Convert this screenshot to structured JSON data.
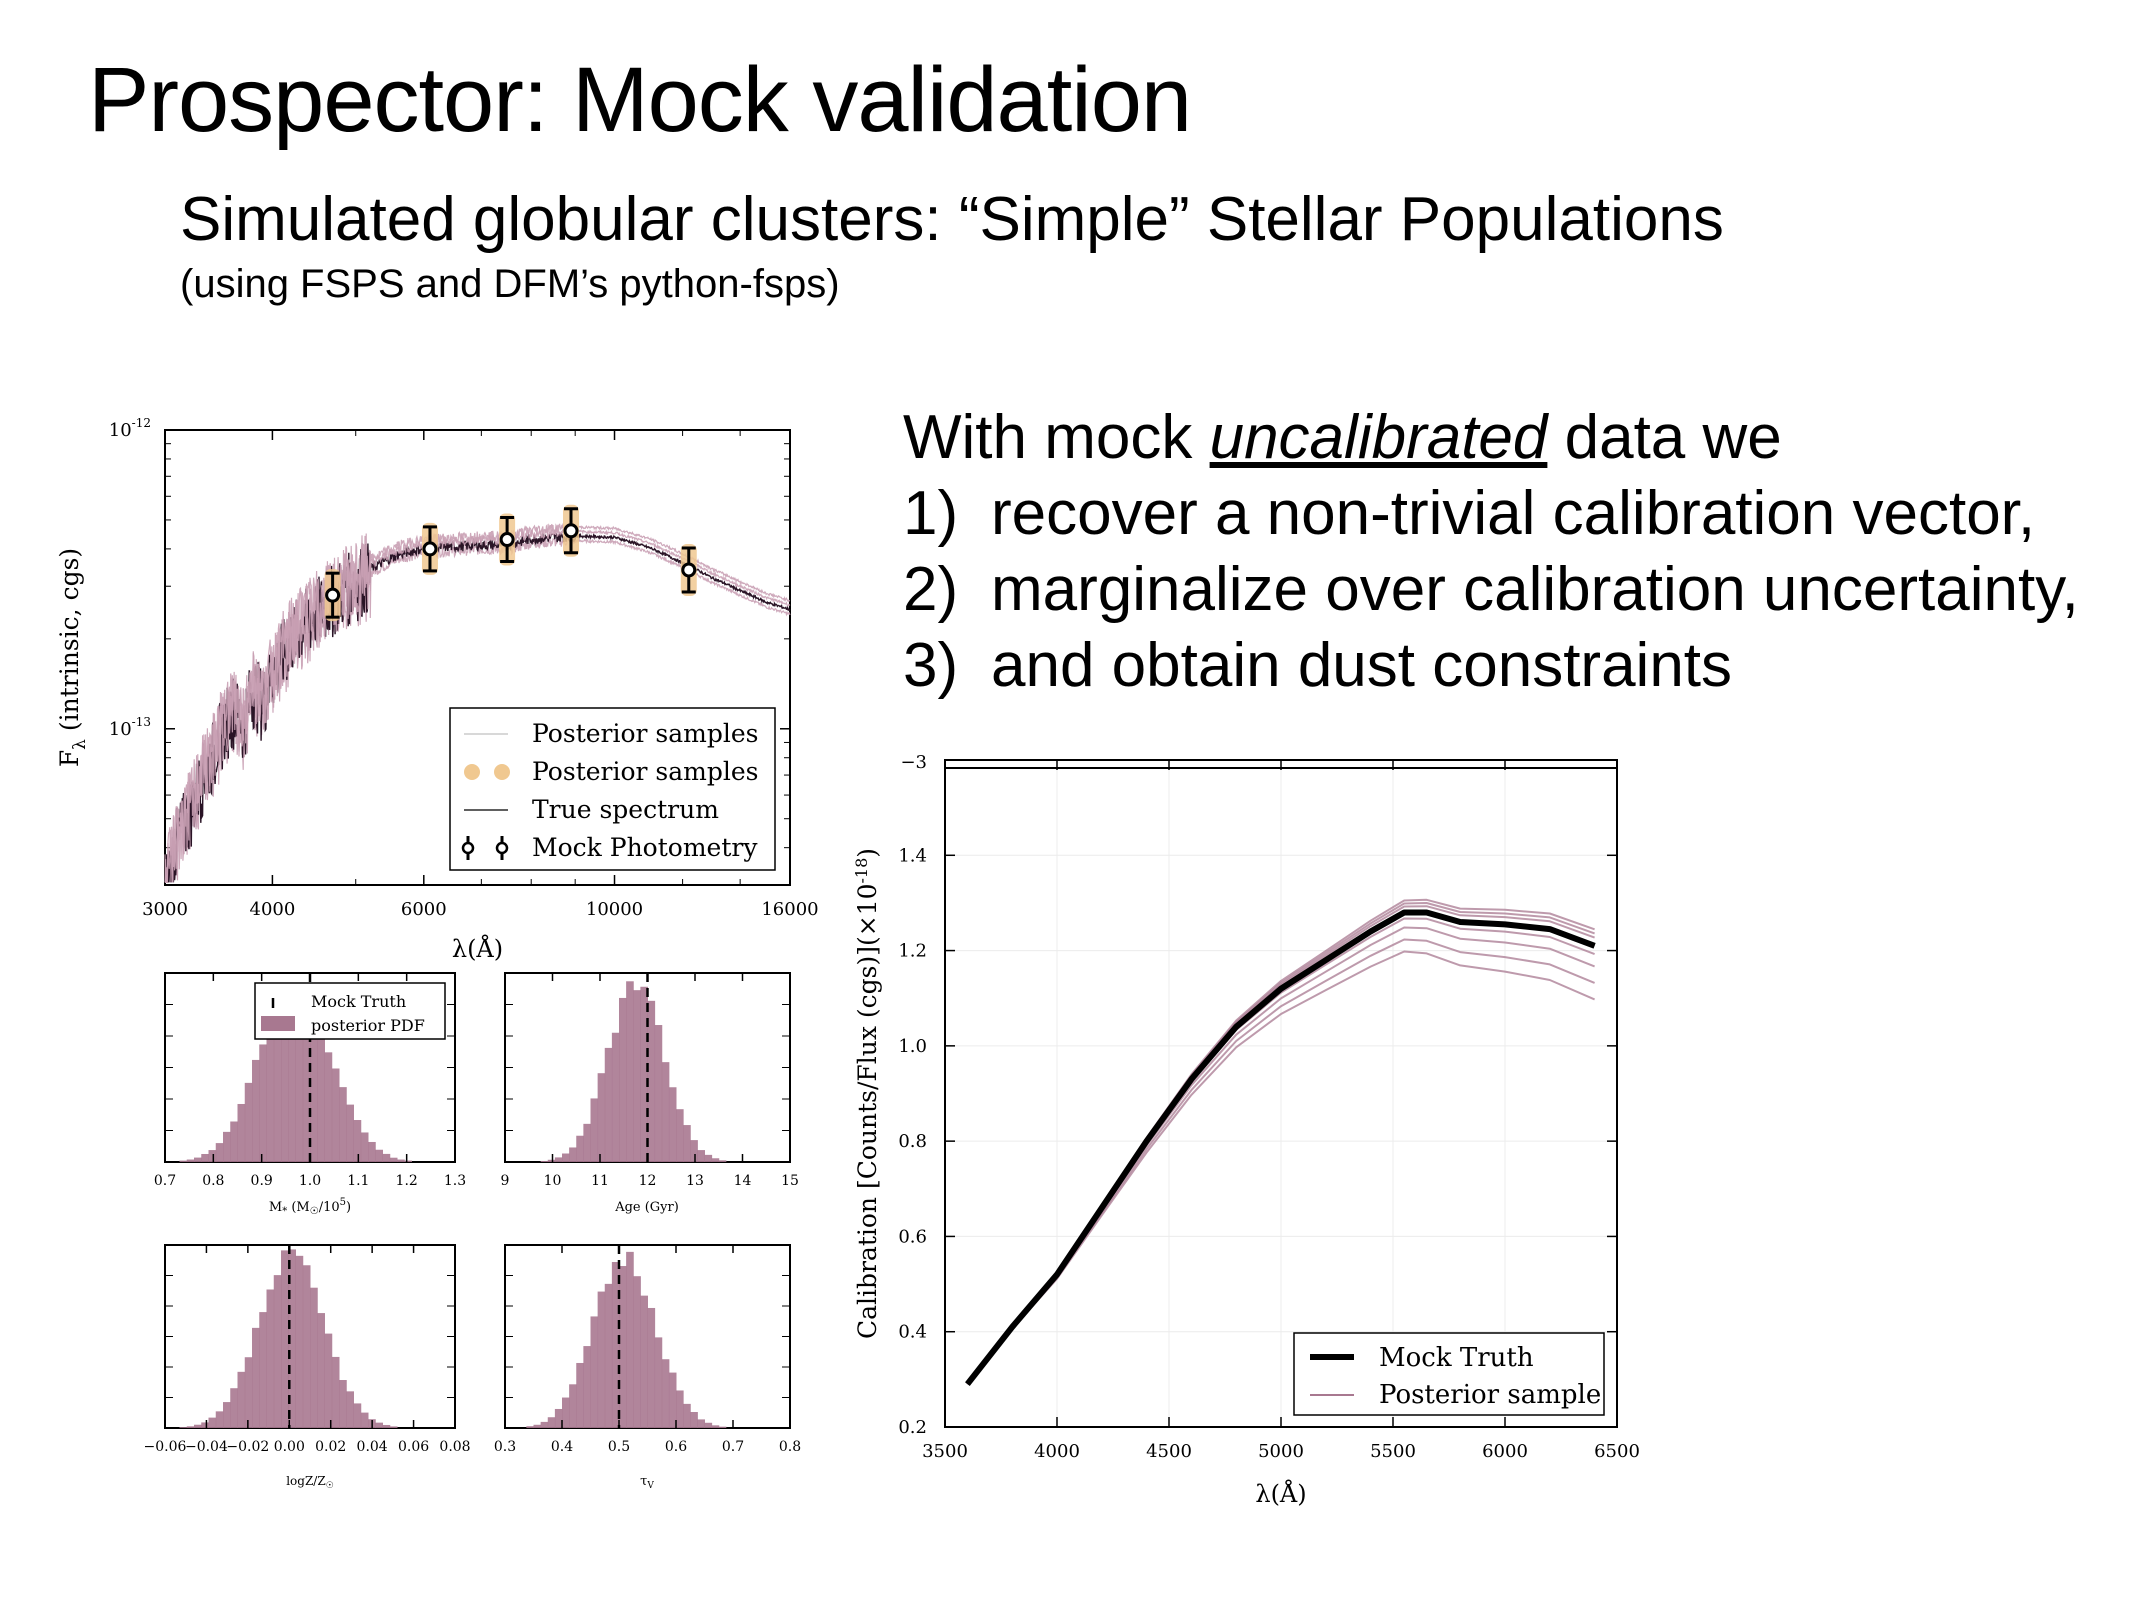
{
  "slide": {
    "title": "Prospector: Mock validation",
    "subtitle": "Simulated globular clusters: “Simple” Stellar Populations",
    "subnote": "(using FSPS and DFM’s python-fsps)"
  },
  "bullets": {
    "intro_pre": "With mock ",
    "intro_em": "uncalibrated",
    "intro_post": " data we",
    "items": [
      {
        "num": "1)",
        "text": "recover a non-trivial calibration vector,"
      },
      {
        "num": "2)",
        "text": "marginalize over calibration uncertainty,"
      },
      {
        "num": "3)",
        "text": "and obtain dust constraints"
      }
    ]
  },
  "colors": {
    "spectrum": "#2a1426",
    "posterior_line": "#c9a0b4",
    "posterior_fill": "#a87890",
    "photometry_band": "#f0c890",
    "truth": "#000000"
  },
  "chart_data": [
    {
      "id": "sed",
      "type": "line",
      "xlabel": "λ(Å)",
      "ylabel": "F",
      "ylabel_sub": "λ",
      "ylabel_rest": " (intrinsic, cgs)",
      "x_scale": "log",
      "y_scale": "log",
      "xlim": [
        3000,
        16000
      ],
      "ylim": [
        3e-14,
        1e-12
      ],
      "xticks": [
        3000,
        4000,
        6000,
        10000,
        16000
      ],
      "xtick_labels": [
        "3000",
        "4000",
        "6000",
        "10000",
        "16000"
      ],
      "ytick_labels": [
        {
          "base": "10",
          "exp": "-12",
          "value": 1e-12
        },
        {
          "base": "10",
          "exp": "-13",
          "value": 1e-13
        }
      ],
      "legend": {
        "placement": "lower-right",
        "entries": [
          "Posterior samples",
          "Posterior samples",
          "True spectrum",
          "Mock Photometry"
        ]
      },
      "series": [
        {
          "name": "True spectrum",
          "x": [
            3000,
            3100,
            3200,
            3300,
            3400,
            3500,
            3600,
            3700,
            3800,
            3900,
            4000,
            4100,
            4200,
            4300,
            4500,
            4700,
            5000,
            5300,
            5600,
            6000,
            6500,
            7000,
            7500,
            8000,
            8500,
            9000,
            10000,
            11000,
            12000,
            13000,
            14000,
            15000,
            16000
          ],
          "y": [
            3e-14,
            4.5e-14,
            5.5e-14,
            7e-14,
            8.5e-14,
            1.05e-13,
            1.25e-13,
            1.1e-13,
            1.45e-13,
            1.3e-13,
            1.6e-13,
            1.85e-13,
            2.1e-13,
            2.3e-13,
            2.6e-13,
            2.9e-13,
            3.3e-13,
            3.6e-13,
            3.9e-13,
            4.1e-13,
            4.15e-13,
            4.2e-13,
            4.2e-13,
            4.4e-13,
            4.45e-13,
            4.5e-13,
            4.45e-13,
            4.1e-13,
            3.65e-13,
            3.25e-13,
            2.95e-13,
            2.7e-13,
            2.55e-13
          ]
        }
      ],
      "photometry": [
        {
          "x": 4700,
          "y": 2.8e-13
        },
        {
          "x": 6100,
          "y": 4e-13
        },
        {
          "x": 7500,
          "y": 4.3e-13
        },
        {
          "x": 8900,
          "y": 4.6e-13
        },
        {
          "x": 12200,
          "y": 3.4e-13
        }
      ]
    },
    {
      "id": "mass",
      "type": "bar",
      "xlabel": "M* (M☉/10⁵)",
      "xlim": [
        0.7,
        1.3
      ],
      "xtick_labels": [
        "0.7",
        "0.8",
        "0.9",
        "1.0",
        "1.1",
        "1.2",
        "1.3"
      ],
      "truth": 1.0,
      "mean": 0.97,
      "sigma": 0.075,
      "legend": {
        "placement": "top-right",
        "entries": [
          "Mock Truth",
          "posterior PDF"
        ]
      }
    },
    {
      "id": "age",
      "type": "bar",
      "xlabel": "Age (Gyr)",
      "xlim": [
        9,
        15
      ],
      "xtick_labels": [
        "9",
        "10",
        "11",
        "12",
        "13",
        "14",
        "15"
      ],
      "truth": 12.0,
      "mean": 11.75,
      "sigma": 0.6
    },
    {
      "id": "logz",
      "type": "bar",
      "xlabel": "logZ/Z☉",
      "xlim": [
        -0.06,
        0.08
      ],
      "xtick_labels": [
        "−0.06",
        "−0.04",
        "−0.02",
        "0.00",
        "0.02",
        "0.04",
        "0.06",
        "0.08"
      ],
      "truth": 0.0,
      "mean": 0.001,
      "sigma": 0.016
    },
    {
      "id": "tauv",
      "type": "bar",
      "xlabel": "τV",
      "xlim": [
        0.3,
        0.8
      ],
      "xtick_labels": [
        "0.3",
        "0.4",
        "0.5",
        "0.6",
        "0.7",
        "0.8"
      ],
      "truth": 0.5,
      "mean": 0.51,
      "sigma": 0.055
    },
    {
      "id": "calibration",
      "type": "line",
      "xlabel": "λ(Å)",
      "ylabel": "Calibration [Counts/Flux (cgs)](×10",
      "ylabel_exp": "-18",
      "ylabel_end": ")",
      "xlim": [
        3500,
        6500
      ],
      "ylim": [
        0.2,
        1.6
      ],
      "top_tick_label": "−3",
      "xtick_labels": [
        "3500",
        "4000",
        "4500",
        "5000",
        "5500",
        "6000",
        "6500"
      ],
      "ytick_labels": [
        "0.2",
        "0.4",
        "0.6",
        "0.8",
        "1.0",
        "1.2",
        "1.4"
      ],
      "legend": {
        "placement": "lower-right",
        "entries": [
          "Mock Truth",
          "Posterior sample"
        ]
      },
      "series": [
        {
          "name": "Mock Truth",
          "x": [
            3600,
            3800,
            4000,
            4200,
            4400,
            4600,
            4800,
            5000,
            5200,
            5400,
            5550,
            5650,
            5800,
            6000,
            6200,
            6400
          ],
          "y": [
            0.29,
            0.41,
            0.52,
            0.66,
            0.8,
            0.93,
            1.04,
            1.12,
            1.18,
            1.24,
            1.28,
            1.28,
            1.26,
            1.255,
            1.245,
            1.21
          ]
        }
      ],
      "posterior_offsets": [
        0.04,
        0.02,
        -0.02,
        -0.05,
        -0.09,
        -0.13,
        0.03,
        0.0
      ]
    }
  ]
}
